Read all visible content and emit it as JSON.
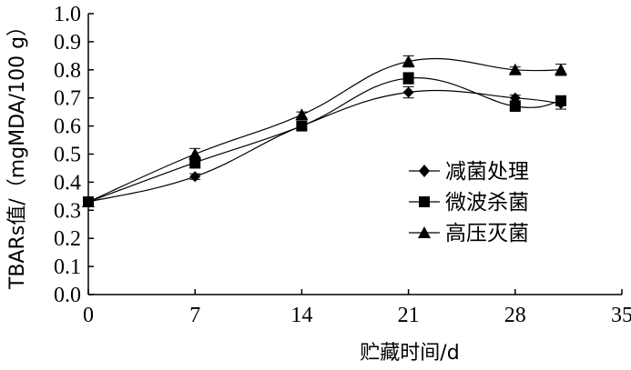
{
  "chart_data": {
    "type": "line",
    "xlabel": "贮藏时间/d",
    "ylabel": "TBARs值/（mgMDA/100 g）",
    "xlim": [
      0,
      35
    ],
    "ylim": [
      0,
      1.0
    ],
    "x_ticks": [
      0,
      7,
      14,
      21,
      28,
      35
    ],
    "y_ticks": [
      0.0,
      0.1,
      0.2,
      0.3,
      0.4,
      0.5,
      0.6,
      0.7,
      0.8,
      0.9,
      1.0
    ],
    "x_tick_labels": [
      "0",
      "7",
      "14",
      "21",
      "28",
      "35"
    ],
    "y_tick_labels": [
      "0.0",
      "0.1",
      "0.2",
      "0.3",
      "0.4",
      "0.5",
      "0.6",
      "0.7",
      "0.8",
      "0.9",
      "1.0"
    ],
    "grid": false,
    "legend_position": "right-middle",
    "series": [
      {
        "name": "减菌处理",
        "marker": "diamond",
        "x": [
          0,
          7,
          14,
          21,
          28,
          31
        ],
        "y": [
          0.33,
          0.42,
          0.6,
          0.72,
          0.7,
          0.68
        ],
        "err": [
          0.01,
          0.01,
          0.01,
          0.02,
          0.01,
          0.02
        ]
      },
      {
        "name": "微波杀菌",
        "marker": "square",
        "x": [
          0,
          7,
          14,
          21,
          28,
          31
        ],
        "y": [
          0.33,
          0.47,
          0.6,
          0.77,
          0.67,
          0.69
        ],
        "err": [
          0.01,
          0.02,
          0.01,
          0.02,
          0.01,
          0.01
        ]
      },
      {
        "name": "高压灭菌",
        "marker": "triangle",
        "x": [
          0,
          7,
          14,
          21,
          28,
          31
        ],
        "y": [
          0.33,
          0.5,
          0.64,
          0.83,
          0.8,
          0.8
        ],
        "err": [
          0.01,
          0.02,
          0.01,
          0.02,
          0.01,
          0.02
        ]
      }
    ],
    "colors": {
      "line": "#000000",
      "background": "#ffffff"
    }
  }
}
